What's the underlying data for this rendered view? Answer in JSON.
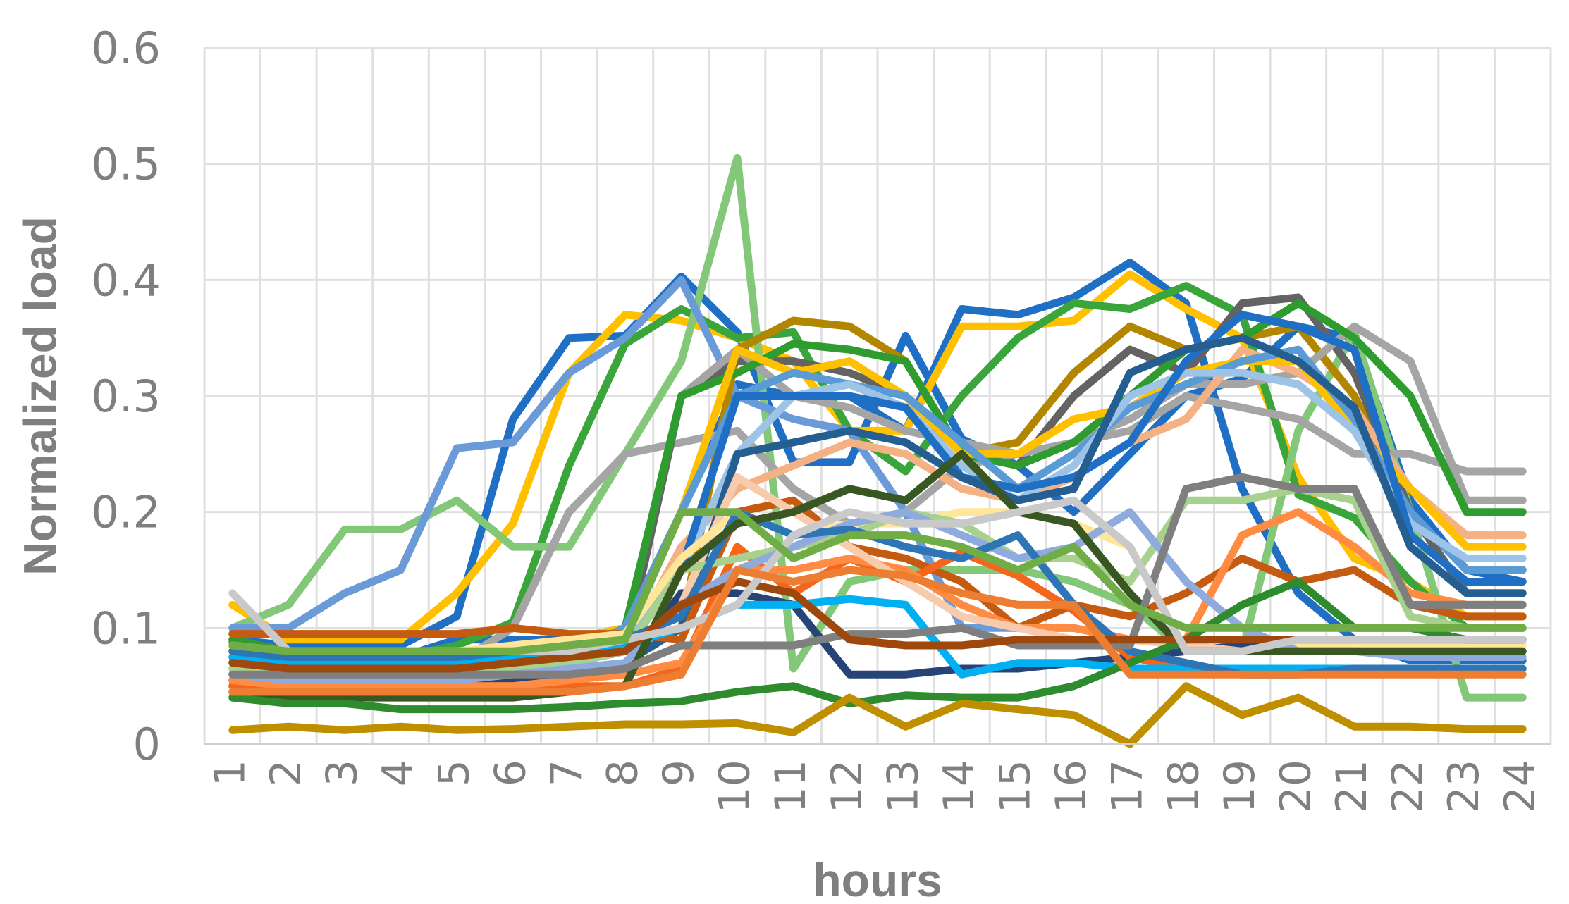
{
  "chart_data": {
    "type": "line",
    "xlabel": "hours",
    "ylabel": "Normalized load",
    "ylim": [
      0,
      0.6
    ],
    "yticks": [
      "0",
      "0.1",
      "0.2",
      "0.3",
      "0.4",
      "0.5",
      "0.6"
    ],
    "x": [
      "1",
      "2",
      "3",
      "4",
      "5",
      "6",
      "7",
      "8",
      "9",
      "10",
      "11",
      "12",
      "13",
      "14",
      "15",
      "16",
      "17",
      "18",
      "19",
      "20",
      "21",
      "22",
      "23",
      "24"
    ],
    "grid": true,
    "legend": "none",
    "series": [
      {
        "color": "#1f6fc5",
        "values": [
          0.09,
          0.085,
          0.085,
          0.085,
          0.11,
          0.28,
          0.35,
          0.352,
          0.403,
          0.355,
          0.243,
          0.243,
          0.352,
          0.263,
          0.24,
          0.2,
          0.25,
          0.3,
          0.315,
          0.36,
          0.35,
          0.21,
          0.15,
          0.14
        ]
      },
      {
        "color": "#1f6fc5",
        "values": [
          0.08,
          0.075,
          0.075,
          0.075,
          0.09,
          0.09,
          0.09,
          0.1,
          0.2,
          0.31,
          0.3,
          0.3,
          0.27,
          0.375,
          0.37,
          0.385,
          0.415,
          0.38,
          0.22,
          0.13,
          0.09,
          0.072,
          0.072,
          0.072
        ]
      },
      {
        "color": "#ffc000",
        "values": [
          0.12,
          0.09,
          0.09,
          0.09,
          0.13,
          0.19,
          0.32,
          0.37,
          0.365,
          0.35,
          0.33,
          0.27,
          0.27,
          0.36,
          0.36,
          0.365,
          0.405,
          0.375,
          0.35,
          0.23,
          0.16,
          0.14,
          0.11,
          0.11
        ]
      },
      {
        "color": "#3aa53a",
        "values": [
          0.088,
          0.075,
          0.075,
          0.075,
          0.085,
          0.105,
          0.24,
          0.345,
          0.375,
          0.35,
          0.355,
          0.27,
          0.235,
          0.3,
          0.35,
          0.38,
          0.375,
          0.395,
          0.37,
          0.215,
          0.195,
          0.14,
          0.1,
          0.1
        ]
      },
      {
        "color": "#82c878",
        "values": [
          0.1,
          0.12,
          0.185,
          0.185,
          0.21,
          0.17,
          0.17,
          0.25,
          0.33,
          0.505,
          0.065,
          0.14,
          0.15,
          0.15,
          0.15,
          0.14,
          0.12,
          0.08,
          0.08,
          0.27,
          0.355,
          0.2,
          0.04,
          0.04
        ]
      },
      {
        "color": "#6a9ad8",
        "values": [
          0.1,
          0.1,
          0.13,
          0.15,
          0.255,
          0.26,
          0.32,
          0.35,
          0.4,
          0.3,
          0.28,
          0.27,
          0.2,
          0.1,
          0.1,
          0.1,
          0.09,
          0.09,
          0.09,
          0.09,
          0.09,
          0.09,
          0.09,
          0.09
        ]
      },
      {
        "color": "#a5a5a5",
        "values": [
          0.07,
          0.065,
          0.065,
          0.065,
          0.07,
          0.1,
          0.2,
          0.25,
          0.26,
          0.27,
          0.22,
          0.19,
          0.2,
          0.24,
          0.25,
          0.26,
          0.27,
          0.3,
          0.29,
          0.28,
          0.25,
          0.25,
          0.235,
          0.235
        ]
      },
      {
        "color": "#b38600",
        "values": [
          0.06,
          0.06,
          0.06,
          0.06,
          0.06,
          0.06,
          0.06,
          0.07,
          0.1,
          0.34,
          0.365,
          0.36,
          0.33,
          0.25,
          0.26,
          0.32,
          0.36,
          0.34,
          0.35,
          0.36,
          0.3,
          0.2,
          0.15,
          0.15
        ]
      },
      {
        "color": "#636363",
        "values": [
          0.065,
          0.06,
          0.06,
          0.06,
          0.06,
          0.06,
          0.07,
          0.08,
          0.3,
          0.33,
          0.33,
          0.32,
          0.3,
          0.25,
          0.24,
          0.3,
          0.34,
          0.32,
          0.38,
          0.385,
          0.32,
          0.2,
          0.13,
          0.13
        ]
      },
      {
        "color": "#a5a5a5",
        "values": [
          0.075,
          0.07,
          0.07,
          0.07,
          0.07,
          0.08,
          0.09,
          0.1,
          0.3,
          0.34,
          0.3,
          0.29,
          0.27,
          0.26,
          0.25,
          0.26,
          0.28,
          0.31,
          0.31,
          0.32,
          0.36,
          0.33,
          0.21,
          0.21
        ]
      },
      {
        "color": "#2f9c2f",
        "values": [
          0.09,
          0.08,
          0.08,
          0.08,
          0.08,
          0.08,
          0.09,
          0.1,
          0.3,
          0.32,
          0.345,
          0.34,
          0.33,
          0.25,
          0.24,
          0.26,
          0.3,
          0.34,
          0.35,
          0.38,
          0.35,
          0.3,
          0.2,
          0.2
        ]
      },
      {
        "color": "#f4b183",
        "values": [
          0.065,
          0.06,
          0.06,
          0.06,
          0.06,
          0.065,
          0.07,
          0.08,
          0.17,
          0.22,
          0.24,
          0.26,
          0.25,
          0.22,
          0.21,
          0.23,
          0.26,
          0.28,
          0.34,
          0.32,
          0.29,
          0.22,
          0.18,
          0.18
        ]
      },
      {
        "color": "#ffc000",
        "values": [
          0.08,
          0.075,
          0.075,
          0.075,
          0.075,
          0.08,
          0.09,
          0.1,
          0.2,
          0.34,
          0.32,
          0.33,
          0.3,
          0.25,
          0.25,
          0.28,
          0.29,
          0.32,
          0.33,
          0.33,
          0.27,
          0.22,
          0.17,
          0.17
        ]
      },
      {
        "color": "#5b9bd5",
        "values": [
          0.07,
          0.065,
          0.065,
          0.065,
          0.065,
          0.07,
          0.08,
          0.1,
          0.2,
          0.3,
          0.32,
          0.31,
          0.3,
          0.26,
          0.22,
          0.25,
          0.29,
          0.31,
          0.33,
          0.34,
          0.28,
          0.2,
          0.15,
          0.15
        ]
      },
      {
        "color": "#9dc3e6",
        "values": [
          0.075,
          0.07,
          0.07,
          0.07,
          0.07,
          0.075,
          0.08,
          0.09,
          0.15,
          0.25,
          0.3,
          0.31,
          0.29,
          0.24,
          0.21,
          0.24,
          0.3,
          0.32,
          0.32,
          0.31,
          0.27,
          0.19,
          0.16,
          0.16
        ]
      },
      {
        "color": "#1f6fc5",
        "values": [
          0.06,
          0.055,
          0.055,
          0.055,
          0.055,
          0.06,
          0.07,
          0.08,
          0.15,
          0.3,
          0.3,
          0.3,
          0.29,
          0.23,
          0.22,
          0.23,
          0.26,
          0.33,
          0.37,
          0.36,
          0.34,
          0.18,
          0.14,
          0.14
        ]
      },
      {
        "color": "#255e91",
        "values": [
          0.05,
          0.05,
          0.05,
          0.05,
          0.05,
          0.05,
          0.06,
          0.07,
          0.1,
          0.25,
          0.26,
          0.27,
          0.26,
          0.23,
          0.21,
          0.22,
          0.32,
          0.34,
          0.35,
          0.33,
          0.29,
          0.17,
          0.13,
          0.13
        ]
      },
      {
        "color": "#264478",
        "values": [
          0.055,
          0.05,
          0.05,
          0.05,
          0.05,
          0.055,
          0.06,
          0.065,
          0.13,
          0.13,
          0.12,
          0.06,
          0.06,
          0.065,
          0.065,
          0.07,
          0.075,
          0.08,
          0.085,
          0.09,
          0.09,
          0.09,
          0.09,
          0.09
        ]
      },
      {
        "color": "#c55a11",
        "values": [
          0.095,
          0.095,
          0.095,
          0.095,
          0.095,
          0.1,
          0.095,
          0.095,
          0.09,
          0.2,
          0.21,
          0.17,
          0.16,
          0.14,
          0.1,
          0.12,
          0.11,
          0.13,
          0.16,
          0.14,
          0.15,
          0.12,
          0.11,
          0.11
        ]
      },
      {
        "color": "#f4661b",
        "values": [
          0.05,
          0.05,
          0.05,
          0.05,
          0.05,
          0.05,
          0.05,
          0.05,
          0.065,
          0.17,
          0.13,
          0.16,
          0.14,
          0.165,
          0.145,
          0.115,
          0.075,
          0.065,
          0.06,
          0.065,
          0.065,
          0.065,
          0.065,
          0.065
        ]
      },
      {
        "color": "#ff8c42",
        "values": [
          0.055,
          0.05,
          0.05,
          0.05,
          0.05,
          0.05,
          0.055,
          0.06,
          0.07,
          0.15,
          0.15,
          0.16,
          0.15,
          0.12,
          0.1,
          0.1,
          0.09,
          0.09,
          0.18,
          0.2,
          0.17,
          0.13,
          0.12,
          0.12
        ]
      },
      {
        "color": "#f8cbad",
        "values": [
          0.07,
          0.065,
          0.065,
          0.065,
          0.065,
          0.07,
          0.075,
          0.08,
          0.12,
          0.23,
          0.2,
          0.17,
          0.14,
          0.11,
          0.1,
          0.09,
          0.09,
          0.085,
          0.08,
          0.08,
          0.08,
          0.08,
          0.08,
          0.08
        ]
      },
      {
        "color": "#ffe699",
        "values": [
          0.085,
          0.08,
          0.08,
          0.08,
          0.08,
          0.085,
          0.09,
          0.095,
          0.16,
          0.2,
          0.18,
          0.19,
          0.19,
          0.2,
          0.2,
          0.19,
          0.17,
          0.08,
          0.08,
          0.085,
          0.085,
          0.085,
          0.085,
          0.085
        ]
      },
      {
        "color": "#a9d18e",
        "values": [
          0.065,
          0.06,
          0.06,
          0.06,
          0.06,
          0.065,
          0.07,
          0.08,
          0.15,
          0.16,
          0.17,
          0.18,
          0.2,
          0.19,
          0.16,
          0.16,
          0.14,
          0.21,
          0.21,
          0.22,
          0.21,
          0.11,
          0.1,
          0.1
        ]
      },
      {
        "color": "#8faadc",
        "values": [
          0.06,
          0.055,
          0.055,
          0.055,
          0.055,
          0.06,
          0.065,
          0.07,
          0.12,
          0.15,
          0.17,
          0.19,
          0.2,
          0.18,
          0.16,
          0.17,
          0.2,
          0.14,
          0.1,
          0.08,
          0.08,
          0.075,
          0.075,
          0.075
        ]
      },
      {
        "color": "#00b0f0",
        "values": [
          0.075,
          0.07,
          0.07,
          0.07,
          0.07,
          0.075,
          0.08,
          0.085,
          0.1,
          0.12,
          0.12,
          0.125,
          0.12,
          0.06,
          0.07,
          0.07,
          0.065,
          0.065,
          0.065,
          0.065,
          0.065,
          0.065,
          0.065,
          0.065
        ]
      },
      {
        "color": "#2e75b6",
        "values": [
          0.08,
          0.075,
          0.075,
          0.075,
          0.075,
          0.08,
          0.085,
          0.09,
          0.11,
          0.2,
          0.18,
          0.185,
          0.17,
          0.16,
          0.18,
          0.12,
          0.08,
          0.07,
          0.06,
          0.06,
          0.065,
          0.065,
          0.065,
          0.065
        ]
      },
      {
        "color": "#385723",
        "values": [
          0.045,
          0.04,
          0.04,
          0.04,
          0.04,
          0.04,
          0.045,
          0.05,
          0.15,
          0.19,
          0.2,
          0.22,
          0.21,
          0.25,
          0.2,
          0.19,
          0.13,
          0.08,
          0.08,
          0.08,
          0.08,
          0.08,
          0.08,
          0.08
        ]
      },
      {
        "color": "#2e8b2e",
        "values": [
          0.04,
          0.035,
          0.035,
          0.03,
          0.03,
          0.03,
          0.032,
          0.035,
          0.037,
          0.045,
          0.05,
          0.035,
          0.042,
          0.04,
          0.04,
          0.05,
          0.07,
          0.09,
          0.12,
          0.14,
          0.1,
          0.1,
          0.09,
          0.09
        ]
      },
      {
        "color": "#bf8f00",
        "values": [
          0.012,
          0.015,
          0.012,
          0.015,
          0.012,
          0.013,
          0.015,
          0.017,
          0.017,
          0.018,
          0.01,
          0.04,
          0.015,
          0.035,
          0.03,
          0.025,
          0.0,
          0.05,
          0.025,
          0.04,
          0.015,
          0.015,
          0.013,
          0.013
        ]
      },
      {
        "color": "#7f7f7f",
        "values": [
          0.06,
          0.06,
          0.06,
          0.06,
          0.06,
          0.06,
          0.06,
          0.065,
          0.085,
          0.085,
          0.085,
          0.095,
          0.095,
          0.1,
          0.085,
          0.085,
          0.085,
          0.22,
          0.23,
          0.22,
          0.22,
          0.12,
          0.12,
          0.12
        ]
      },
      {
        "color": "#9e480e",
        "values": [
          0.07,
          0.065,
          0.065,
          0.065,
          0.065,
          0.07,
          0.075,
          0.08,
          0.12,
          0.14,
          0.13,
          0.09,
          0.085,
          0.085,
          0.09,
          0.09,
          0.09,
          0.09,
          0.09,
          0.09,
          0.09,
          0.09,
          0.09,
          0.09
        ]
      },
      {
        "color": "#c9c9c9",
        "values": [
          0.13,
          0.08,
          0.08,
          0.08,
          0.08,
          0.08,
          0.08,
          0.09,
          0.1,
          0.12,
          0.18,
          0.2,
          0.19,
          0.19,
          0.2,
          0.21,
          0.17,
          0.08,
          0.08,
          0.09,
          0.09,
          0.09,
          0.09,
          0.09
        ]
      },
      {
        "color": "#70ad47",
        "values": [
          0.085,
          0.08,
          0.08,
          0.08,
          0.08,
          0.08,
          0.085,
          0.09,
          0.2,
          0.2,
          0.16,
          0.18,
          0.18,
          0.17,
          0.15,
          0.17,
          0.12,
          0.1,
          0.1,
          0.1,
          0.1,
          0.1,
          0.1,
          0.1
        ]
      },
      {
        "color": "#ed7d31",
        "values": [
          0.045,
          0.045,
          0.045,
          0.045,
          0.045,
          0.045,
          0.045,
          0.05,
          0.06,
          0.15,
          0.14,
          0.15,
          0.145,
          0.13,
          0.12,
          0.12,
          0.06,
          0.06,
          0.06,
          0.06,
          0.06,
          0.06,
          0.06,
          0.06
        ]
      }
    ]
  }
}
